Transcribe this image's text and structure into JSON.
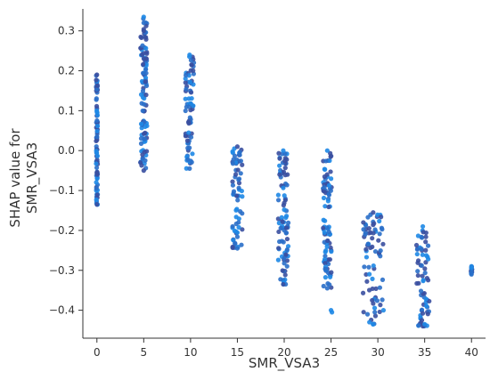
{
  "chart_data": {
    "type": "scatter",
    "xlabel": "SMR_VSA3",
    "ylabel_lines": [
      "SHAP value for",
      "SMR_VSA3"
    ],
    "xlim": [
      -1.5,
      41.5
    ],
    "ylim": [
      -0.47,
      0.355
    ],
    "x_ticks": [
      0,
      5,
      10,
      15,
      20,
      25,
      30,
      35,
      40
    ],
    "y_ticks": [
      0.3,
      0.2,
      0.1,
      0.0,
      -0.1,
      -0.2,
      -0.3,
      -0.4
    ],
    "x_tick_labels": [
      "0",
      "5",
      "10",
      "15",
      "20",
      "25",
      "30",
      "35",
      "40"
    ],
    "y_tick_labels": [
      "0.3",
      "0.2",
      "0.1",
      "0.0",
      "−0.1",
      "−0.2",
      "−0.3",
      "−0.4"
    ],
    "colors": {
      "light": "#1e88e5",
      "mid": "#2a6fc9",
      "dark": "#3a4fa0",
      "axis": "#333333"
    },
    "groups": [
      {
        "x": 0.0,
        "y_min": -0.135,
        "y_max": 0.19,
        "spread": 0.08
      },
      {
        "x": 5.0,
        "y_min": -0.05,
        "y_max": 0.335,
        "spread": 0.35
      },
      {
        "x": 9.9,
        "y_min": -0.045,
        "y_max": 0.24,
        "spread": 0.45
      },
      {
        "x": 15.0,
        "y_min": -0.245,
        "y_max": 0.01,
        "spread": 0.55
      },
      {
        "x": 19.9,
        "y_min": -0.335,
        "y_max": 0.0,
        "spread": 0.55
      },
      {
        "x": 24.6,
        "y_min": -0.345,
        "y_max": 0.0,
        "spread": 0.45
      },
      {
        "x": 29.5,
        "y_min": -0.435,
        "y_max": -0.155,
        "spread": 1.1
      },
      {
        "x": 34.8,
        "y_min": -0.44,
        "y_max": -0.19,
        "spread": 0.7
      },
      {
        "x": 40.0,
        "y_min": -0.31,
        "y_max": -0.29,
        "spread": 0.05
      }
    ],
    "extra_points": [
      {
        "x": 5.0,
        "y": 0.3
      },
      {
        "x": 5.0,
        "y": 0.32
      },
      {
        "x": 25.0,
        "y": -0.4
      },
      {
        "x": 25.1,
        "y": -0.405
      },
      {
        "x": 30.6,
        "y": -0.4
      },
      {
        "x": 29.1,
        "y": -0.43
      },
      {
        "x": 34.7,
        "y": -0.425
      },
      {
        "x": 35.0,
        "y": -0.435
      },
      {
        "x": 40.0,
        "y": -0.295
      },
      {
        "x": 40.0,
        "y": -0.305
      }
    ]
  }
}
